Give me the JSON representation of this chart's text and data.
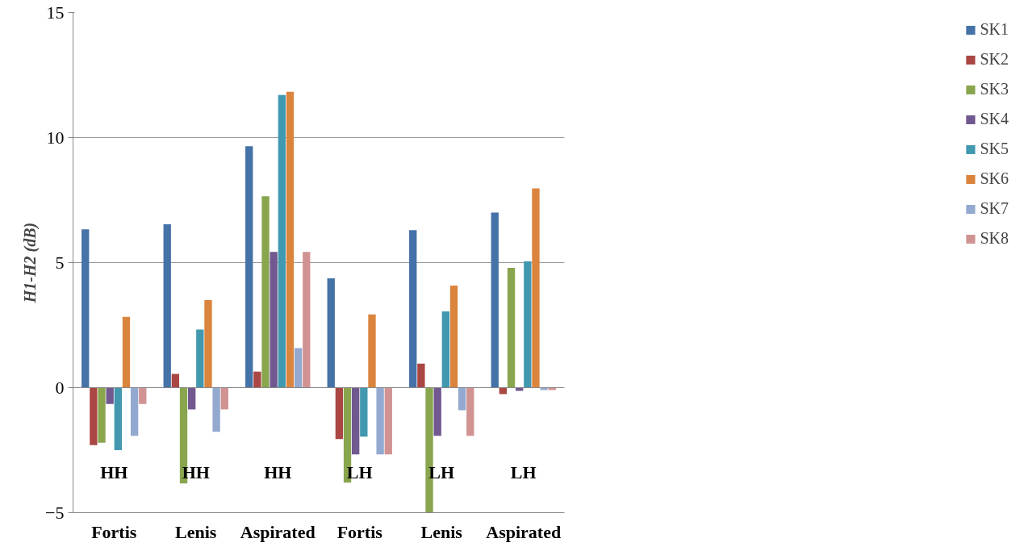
{
  "chart_data": {
    "type": "bar",
    "ylabel": "H1-H2 (dB)",
    "categories": [
      "HH\nFortis",
      "HH\nLenis",
      "HH\nAspirated",
      "LH\nFortis",
      "LH\nLenis",
      "LH\nAspirated"
    ],
    "series": [
      {
        "name": "SK1",
        "color": "#4572a7",
        "values": [
          6.33,
          6.53,
          9.65,
          4.37,
          6.3,
          7.0
        ]
      },
      {
        "name": "SK2",
        "color": "#aa4643",
        "values": [
          -2.3,
          0.55,
          0.64,
          -2.06,
          0.96,
          -0.26
        ]
      },
      {
        "name": "SK3",
        "color": "#89a54e",
        "values": [
          -2.2,
          -3.83,
          7.65,
          -3.8,
          -5.0,
          4.79
        ]
      },
      {
        "name": "SK4",
        "color": "#71588f",
        "values": [
          -0.65,
          -0.87,
          5.43,
          -2.67,
          -1.93,
          -0.13
        ]
      },
      {
        "name": "SK5",
        "color": "#4198af",
        "values": [
          -2.5,
          2.32,
          11.7,
          -1.96,
          3.05,
          5.05
        ]
      },
      {
        "name": "SK6",
        "color": "#db843d",
        "values": [
          2.83,
          3.5,
          11.83,
          2.93,
          4.08,
          7.97
        ]
      },
      {
        "name": "SK7",
        "color": "#93a9cf",
        "values": [
          -1.93,
          -1.77,
          1.58,
          -2.67,
          -0.9,
          -0.1
        ]
      },
      {
        "name": "SK8",
        "color": "#d19392",
        "values": [
          -0.65,
          -0.87,
          5.43,
          -2.67,
          -1.93,
          -0.1
        ]
      }
    ],
    "ylim": [
      -5,
      15
    ],
    "yticks": [
      -5,
      0,
      5,
      10,
      15
    ],
    "grid": "y",
    "legend": "right"
  }
}
